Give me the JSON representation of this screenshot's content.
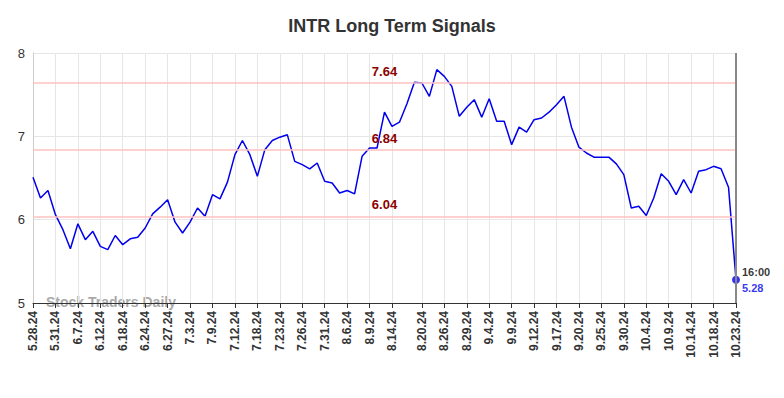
{
  "chart_data": {
    "type": "line",
    "title": "INTR Long Term Signals",
    "watermark": "Stock Traders Daily",
    "last_point_time": "16:00",
    "color": "#0000ee",
    "grid": true,
    "ylim": [
      5,
      8
    ],
    "yticks": [
      5,
      6,
      7,
      8
    ],
    "reference_lines": [
      7.64,
      6.84,
      6.04
    ],
    "categories": [
      "5.28.24",
      null,
      null,
      "5.31.24",
      null,
      null,
      "6.7.24",
      null,
      null,
      "6.12.24",
      null,
      null,
      "6.18.24",
      null,
      null,
      "6.24.24",
      null,
      null,
      "6.27.24",
      null,
      null,
      "7.3.24",
      null,
      null,
      "7.9.24",
      null,
      null,
      "7.12.24",
      null,
      null,
      "7.18.24",
      null,
      null,
      "7.23.24",
      null,
      null,
      "7.26.24",
      null,
      null,
      "7.31.24",
      null,
      null,
      "8.6.24",
      null,
      null,
      "8.9.24",
      null,
      null,
      "8.14.24",
      null,
      null,
      null,
      "8.20.24",
      null,
      null,
      "8.26.24",
      null,
      null,
      "8.29.24",
      null,
      null,
      "9.4.24",
      null,
      null,
      "9.9.24",
      null,
      null,
      "9.12.24",
      null,
      null,
      "9.17.24",
      null,
      null,
      "9.20.24",
      null,
      null,
      "9.25.24",
      null,
      null,
      "9.30.24",
      null,
      null,
      "10.4.24",
      null,
      null,
      "10.9.24",
      null,
      null,
      "10.14.24",
      null,
      null,
      "10.18.24",
      null,
      null,
      "10.23.24"
    ],
    "values": [
      6.51,
      6.26,
      6.35,
      6.06,
      5.88,
      5.65,
      5.95,
      5.76,
      5.86,
      5.68,
      5.64,
      5.81,
      5.7,
      5.77,
      5.79,
      5.9,
      6.07,
      6.15,
      6.24,
      5.97,
      5.84,
      5.97,
      6.14,
      6.04,
      6.3,
      6.25,
      6.45,
      6.78,
      6.95,
      6.78,
      6.52,
      6.84,
      6.95,
      6.99,
      7.02,
      6.7,
      6.66,
      6.61,
      6.68,
      6.46,
      6.44,
      6.32,
      6.35,
      6.31,
      6.76,
      6.86,
      6.86,
      7.29,
      7.12,
      7.17,
      7.39,
      7.65,
      7.64,
      7.48,
      7.8,
      7.72,
      7.6,
      7.24,
      7.35,
      7.44,
      7.23,
      7.45,
      7.18,
      7.18,
      6.9,
      7.11,
      7.05,
      7.2,
      7.22,
      7.29,
      7.38,
      7.48,
      7.11,
      6.87,
      6.8,
      6.75,
      6.75,
      6.75,
      6.67,
      6.54,
      6.14,
      6.16,
      6.05,
      6.26,
      6.55,
      6.46,
      6.3,
      6.48,
      6.32,
      6.58,
      6.6,
      6.64,
      6.61,
      6.39,
      5.28
    ]
  }
}
